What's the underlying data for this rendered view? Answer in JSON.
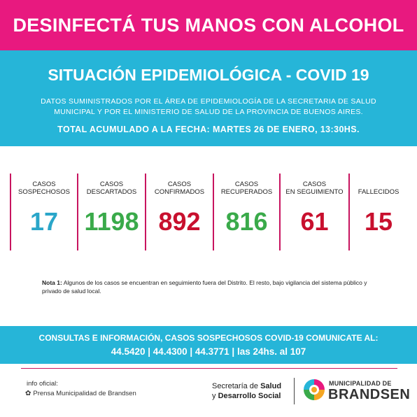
{
  "banner": {
    "text": "DESINFECTÁ TUS MANOS CON ALCOHOL"
  },
  "situation": {
    "title": "SITUACIÓN EPIDEMIOLÓGICA - COVID 19",
    "description": "DATOS SUMINISTRADOS POR EL ÁREA DE EPIDEMIOLOGÍA DE LA SECRETARIA DE SALUD MUNICIPAL Y POR EL MINISTERIO DE SALUD DE LA PROVINCIA DE BUENOS AIRES.",
    "date_line": "TOTAL ACUMULADO A LA FECHA: MARTES 26 DE ENERO, 13:30HS."
  },
  "stats": [
    {
      "label": "CASOS\nSOSPECHOSOS",
      "value": "17",
      "color": "#2aa6c9"
    },
    {
      "label": "CASOS\nDESCARTADOS",
      "value": "1198",
      "color": "#3aaa4a"
    },
    {
      "label": "CASOS\nCONFIRMADOS",
      "value": "892",
      "color": "#c8102e"
    },
    {
      "label": "CASOS\nRECUPERADOS",
      "value": "816",
      "color": "#3aaa4a"
    },
    {
      "label": "CASOS\nEN SEGUIMIENTO",
      "value": "61",
      "color": "#c8102e"
    },
    {
      "label": "FALLECIDOS",
      "value": "15",
      "color": "#c8102e"
    }
  ],
  "note": {
    "label": "Nota 1:",
    "text": "Algunos de los casos se encuentran en seguimiento fuera del Distrito. El resto, bajo vigilancia del sistema público y privado de salud local."
  },
  "contact": {
    "line1": "CONSULTAS E INFORMACIÓN, CASOS SOSPECHOSOS COVID-19 COMUNICATE AL:",
    "line2": "44.5420 | 44.4300 | 44.3771 | las 24hs. al 107"
  },
  "footer": {
    "info_label": "info oficial:",
    "press": "Prensa Municipalidad de Brandsen",
    "secretaria_prefix": "Secretaría de ",
    "secretaria_bold1": "Salud",
    "secretaria_line2_prefix": "y ",
    "secretaria_bold2": "Desarrollo Social",
    "brand_small": "MUNICIPALIDAD DE",
    "brand_big": "BRANDSEN"
  },
  "colors": {
    "pink": "#e8197f",
    "cyan": "#26b5d8",
    "divider": "#c8145f"
  },
  "icons": [
    "location-pin-icon",
    "brandsen-logo-icon"
  ]
}
